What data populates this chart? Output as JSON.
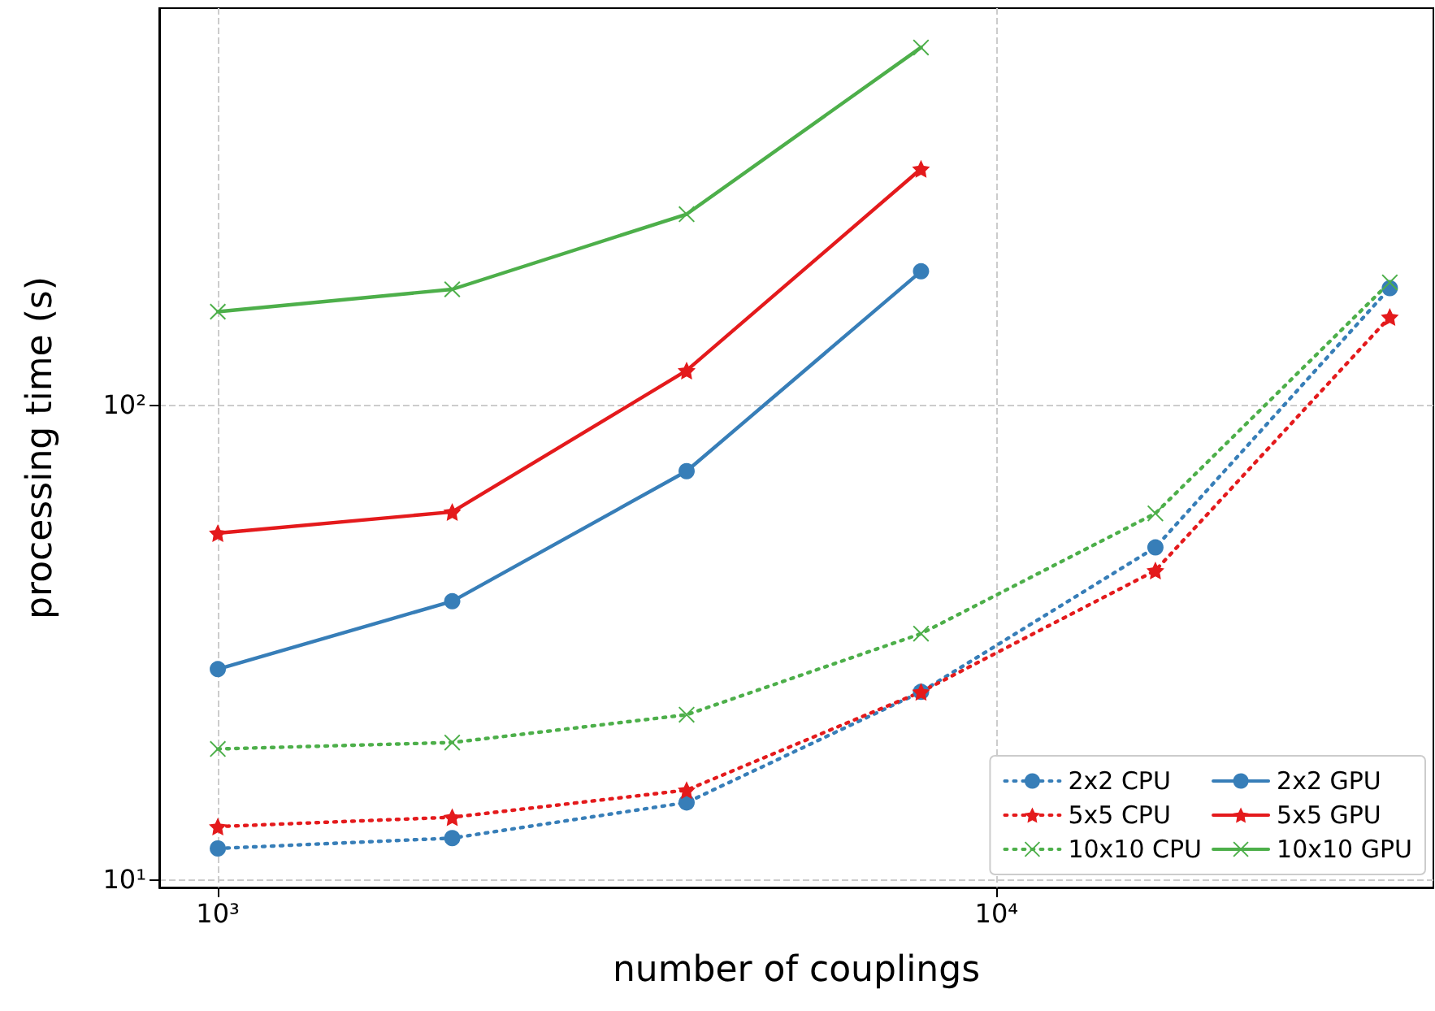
{
  "chart_data": {
    "type": "line",
    "xlabel": "number of couplings",
    "ylabel": "processing time (s)",
    "x": [
      1000,
      2000,
      4000,
      8000,
      16000,
      32000
    ],
    "series": [
      {
        "name": "2x2 CPU",
        "color": "#377eb8",
        "marker": "circle",
        "line_style": "dotted",
        "values": [
          11.6,
          12.2,
          14.5,
          24.8,
          50,
          176
        ]
      },
      {
        "name": "5x5 CPU",
        "color": "#e41a1c",
        "marker": "star",
        "line_style": "dotted",
        "values": [
          12.9,
          13.5,
          15.4,
          24.8,
          44.7,
          153
        ]
      },
      {
        "name": "10x10 CPU",
        "color": "#4daf4a",
        "marker": "cross",
        "line_style": "dotted",
        "values": [
          18.8,
          19.4,
          22.2,
          32.9,
          59,
          181
        ]
      },
      {
        "name": "2x2 GPU",
        "color": "#377eb8",
        "marker": "circle",
        "line_style": "solid",
        "x": [
          1000,
          2000,
          4000,
          8000
        ],
        "values": [
          27.7,
          38.5,
          72.4,
          191
        ]
      },
      {
        "name": "5x5 GPU",
        "color": "#e41a1c",
        "marker": "star",
        "line_style": "solid",
        "x": [
          1000,
          2000,
          4000,
          8000
        ],
        "values": [
          53.6,
          59.4,
          118,
          314
        ]
      },
      {
        "name": "10x10 GPU",
        "color": "#4daf4a",
        "marker": "cross",
        "line_style": "solid",
        "x": [
          1000,
          2000,
          4000,
          8000
        ],
        "values": [
          157,
          175,
          252,
          566
        ]
      }
    ],
    "log": "xy",
    "xlim": [
      841,
      36400
    ],
    "xticks": [
      {
        "value": 1000,
        "label": "10³"
      },
      {
        "value": 10000,
        "label": "10⁴"
      }
    ],
    "ylim": [
      9.6,
      685
    ],
    "yticks": [
      {
        "value": 10,
        "label": "10¹"
      },
      {
        "value": 100,
        "label": "10²"
      }
    ],
    "grid": true,
    "legend": "bottom right"
  }
}
